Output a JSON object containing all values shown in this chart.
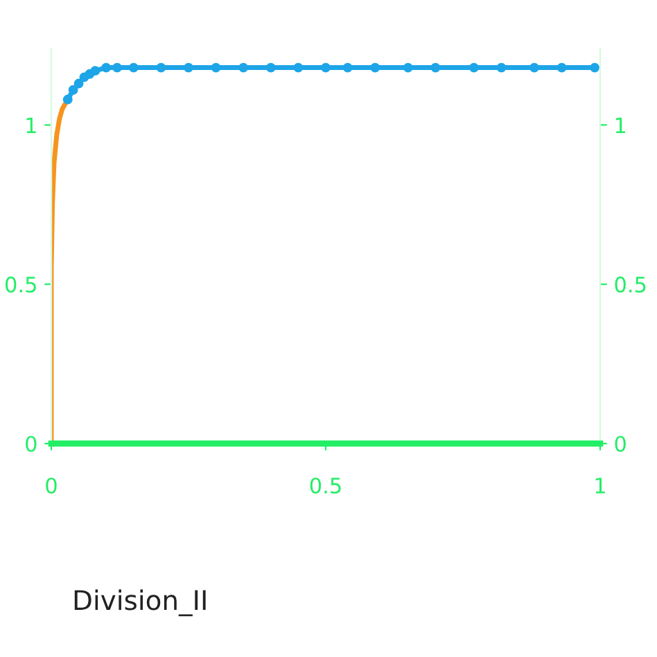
{
  "chart_data": {
    "type": "line",
    "xlim": [
      0,
      1
    ],
    "xticks": [
      0,
      0.5,
      1
    ],
    "ylim": [
      0,
      1.24
    ],
    "yticks": [
      0,
      0.5,
      1
    ],
    "y2lim": [
      0,
      1.24
    ],
    "y2ticks": [
      0,
      0.5,
      1
    ],
    "series": [
      {
        "color": "#f7941d",
        "marker": "none",
        "x": [
          0,
          0,
          0.002,
          0.005,
          0.01,
          0.015,
          0.02,
          0.03
        ],
        "values": [
          0,
          0.55,
          0.75,
          0.88,
          0.97,
          1.02,
          1.05,
          1.08
        ]
      },
      {
        "color": "#1ea5e8",
        "marker": "circle",
        "x": [
          0.03,
          0.04,
          0.05,
          0.06,
          0.07,
          0.08,
          0.1,
          0.12,
          0.15,
          0.2,
          0.25,
          0.3,
          0.35,
          0.4,
          0.45,
          0.5,
          0.54,
          0.59,
          0.65,
          0.7,
          0.77,
          0.82,
          0.88,
          0.93,
          0.99
        ],
        "values": [
          1.08,
          1.11,
          1.13,
          1.15,
          1.16,
          1.17,
          1.18,
          1.18,
          1.18,
          1.18,
          1.18,
          1.18,
          1.18,
          1.18,
          1.18,
          1.18,
          1.18,
          1.18,
          1.18,
          1.18,
          1.18,
          1.18,
          1.18,
          1.18,
          1.18
        ]
      }
    ],
    "grid": false,
    "legend": false,
    "annotations": [
      "Division_II"
    ]
  }
}
